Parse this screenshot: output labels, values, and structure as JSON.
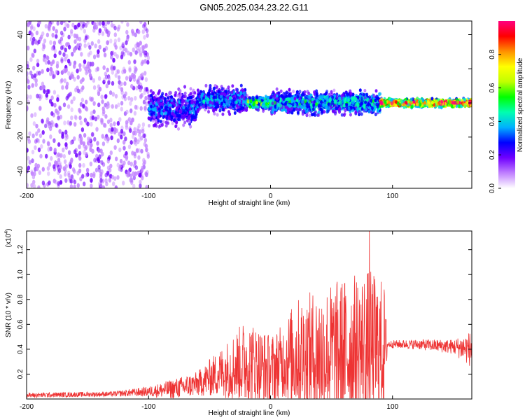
{
  "title": "GN05.2025.034.23.22.G11",
  "chart_data": [
    {
      "type": "heatmap",
      "title": "GN05.2025.034.23.22.G11",
      "xlabel": "Height of straight line (km)",
      "ylabel": "Frequency (Hz)",
      "xlim": [
        -200,
        165
      ],
      "ylim": [
        -50,
        48
      ],
      "xticks": [
        -200,
        -100,
        0,
        100
      ],
      "yticks": [
        -40,
        -20,
        0,
        20,
        40
      ],
      "colorbar": {
        "label": "Normalized spectral amplitude",
        "range": [
          0,
          1
        ],
        "ticks": [
          "0.0",
          "0.2",
          "0.4",
          "0.6",
          "0.8"
        ],
        "colors": [
          "#ffffff",
          "#c080ff",
          "#7000ff",
          "#0000ff",
          "#00b0ff",
          "#00ffb0",
          "#00ff00",
          "#c0ff00",
          "#ffff00",
          "#ff9000",
          "#ff0000",
          "#ff0080"
        ]
      },
      "bands": [
        {
          "x0": -200,
          "x1": -100,
          "center": 0,
          "halfwidth": 50,
          "amplitude": 0.2,
          "density": "scattered"
        },
        {
          "x0": -100,
          "x1": -60,
          "center": -3,
          "halfwidth": 14,
          "amplitude": 0.3
        },
        {
          "x0": -60,
          "x1": -20,
          "center": 2,
          "halfwidth": 10,
          "amplitude": 0.35
        },
        {
          "x0": -20,
          "x1": 0,
          "center": 0,
          "halfwidth": 5,
          "amplitude": 0.5
        },
        {
          "x0": 0,
          "x1": 90,
          "center": 0,
          "halfwidth": 9,
          "amplitude": 0.4
        },
        {
          "x0": 90,
          "x1": 165,
          "center": 0,
          "halfwidth": 3,
          "amplitude": 0.9
        }
      ]
    },
    {
      "type": "line",
      "xlabel": "Height of straight line (km)",
      "ylabel": "SNR (10 * v/v)",
      "yunit": "(x10",
      "yunit_exp": "4",
      "xlim": [
        -200,
        165
      ],
      "ylim": [
        0,
        1.35
      ],
      "xticks": [
        -200,
        -100,
        0,
        100
      ],
      "yticks": [
        "0.2",
        "0.4",
        "0.6",
        "0.8",
        "1.0",
        "1.2"
      ],
      "color": "#ee3333",
      "envelope": [
        {
          "x": -200,
          "y": 0.03,
          "spread": 0.02
        },
        {
          "x": -130,
          "y": 0.04,
          "spread": 0.02
        },
        {
          "x": -100,
          "y": 0.06,
          "spread": 0.04
        },
        {
          "x": -80,
          "y": 0.08,
          "spread": 0.08
        },
        {
          "x": -60,
          "y": 0.12,
          "spread": 0.1
        },
        {
          "x": -40,
          "y": 0.22,
          "spread": 0.2
        },
        {
          "x": -20,
          "y": 0.3,
          "spread": 0.35
        },
        {
          "x": 0,
          "y": 0.22,
          "spread": 0.3
        },
        {
          "x": 10,
          "y": 0.3,
          "spread": 0.3
        },
        {
          "x": 20,
          "y": 0.35,
          "spread": 0.45
        },
        {
          "x": 40,
          "y": 0.35,
          "spread": 0.55
        },
        {
          "x": 60,
          "y": 0.38,
          "spread": 0.6
        },
        {
          "x": 80,
          "y": 0.4,
          "spread": 0.65
        },
        {
          "x": 93,
          "y": 0.4,
          "spread": 0.55
        },
        {
          "x": 96,
          "y": 0.44,
          "spread": 0.03
        },
        {
          "x": 120,
          "y": 0.44,
          "spread": 0.04
        },
        {
          "x": 150,
          "y": 0.42,
          "spread": 0.06
        },
        {
          "x": 165,
          "y": 0.4,
          "spread": 0.15
        }
      ],
      "peak": {
        "x": 81,
        "y": 1.35
      }
    }
  ]
}
